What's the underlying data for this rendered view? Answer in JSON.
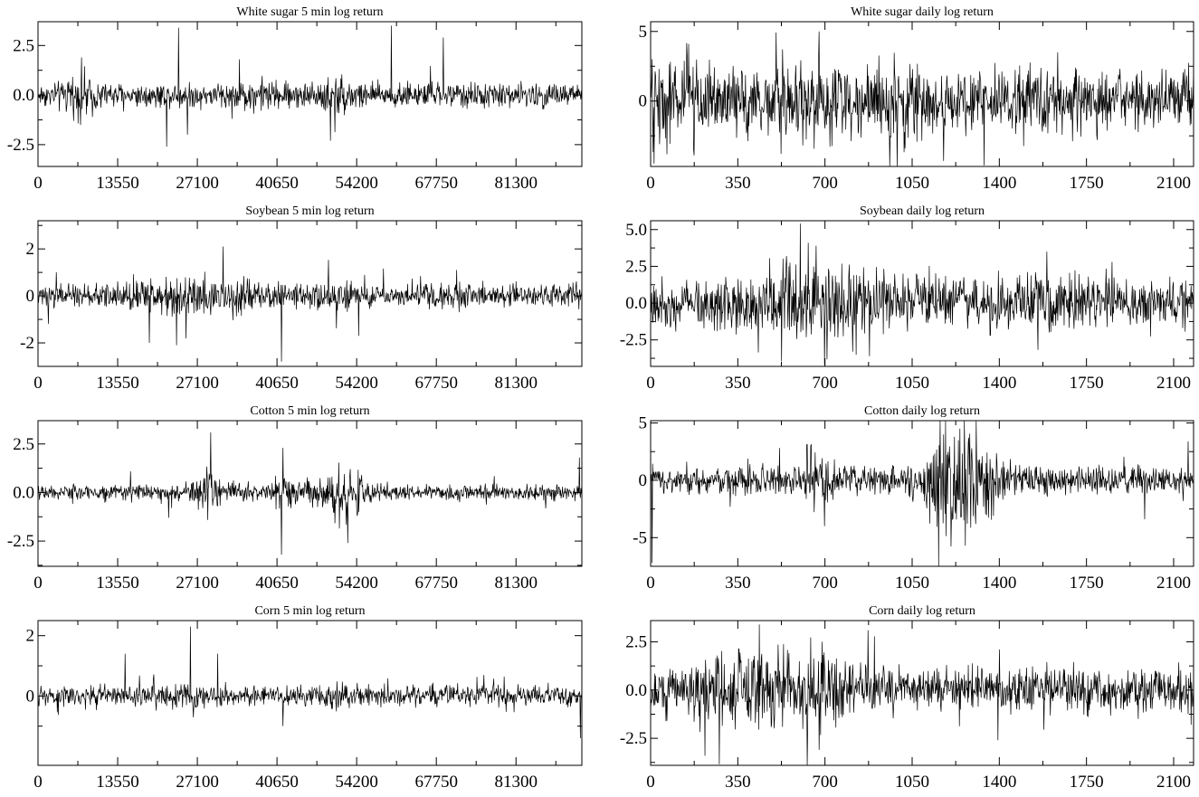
{
  "chart_data": [
    {
      "type": "line",
      "title": "White sugar 5 min log return",
      "x_ticks": [
        0,
        13550,
        27100,
        40650,
        54200,
        67750,
        81300
      ],
      "y_ticks": [
        {
          "v": 2.5,
          "label": "2.5"
        },
        {
          "v": 0,
          "label": "0.0"
        },
        {
          "v": -2.5,
          "label": "-2.5"
        }
      ],
      "xlim": [
        0,
        92500
      ],
      "ylim": [
        -3.6,
        3.7
      ],
      "grid": false,
      "noise_sd": 0.3,
      "clusters": [
        {
          "at": 0.08,
          "w": 0.03,
          "s": 1.8
        },
        {
          "at": 0.4,
          "w": 0.05,
          "s": 1.4
        },
        {
          "at": 0.55,
          "w": 0.04,
          "s": 1.7
        }
      ],
      "spikes": [
        {
          "at": 0.258,
          "v": 3.4
        },
        {
          "at": 0.65,
          "v": 3.5
        },
        {
          "at": 0.745,
          "v": 2.9
        },
        {
          "at": 0.237,
          "v": -2.6
        },
        {
          "at": 0.538,
          "v": -2.3
        },
        {
          "at": 0.275,
          "v": -2.0
        },
        {
          "at": 0.08,
          "v": 1.9
        }
      ]
    },
    {
      "type": "line",
      "title": "White sugar daily log return",
      "x_ticks": [
        0,
        350,
        700,
        1050,
        1400,
        1750,
        2100
      ],
      "y_ticks": [
        {
          "v": 5,
          "label": "5"
        },
        {
          "v": 0,
          "label": "0"
        }
      ],
      "xlim": [
        0,
        2180
      ],
      "ylim": [
        -4.7,
        5.7
      ],
      "grid": false,
      "noise_sd": 1.1,
      "clusters": [
        {
          "at": 0.05,
          "w": 0.06,
          "s": 1.5
        },
        {
          "at": 0.27,
          "w": 0.05,
          "s": 1.4
        },
        {
          "at": 0.45,
          "w": 0.05,
          "s": 1.3
        }
      ],
      "spikes": [
        {
          "at": 0.31,
          "v": 5.0
        },
        {
          "at": 0.006,
          "v": -4.5
        },
        {
          "at": 0.54,
          "v": -4.3
        },
        {
          "at": 0.24,
          "v": -3.8
        },
        {
          "at": 0.75,
          "v": 3.5
        },
        {
          "at": 0.07,
          "v": 4.1
        },
        {
          "at": 0.08,
          "v": -3.9
        }
      ]
    },
    {
      "type": "line",
      "title": "Soybean 5 min log return",
      "x_ticks": [
        0,
        13550,
        27100,
        40650,
        54200,
        67750,
        81300
      ],
      "y_ticks": [
        {
          "v": 2,
          "label": "2"
        },
        {
          "v": 0,
          "label": "0"
        },
        {
          "v": -2,
          "label": "-2"
        }
      ],
      "xlim": [
        0,
        92500
      ],
      "ylim": [
        -3.0,
        3.2
      ],
      "grid": false,
      "noise_sd": 0.22,
      "clusters": [
        {
          "at": 0.3,
          "w": 0.12,
          "s": 2.0
        },
        {
          "at": 0.55,
          "w": 0.05,
          "s": 1.3
        },
        {
          "at": 0.75,
          "w": 0.05,
          "s": 1.3
        }
      ],
      "spikes": [
        {
          "at": 0.34,
          "v": 2.1
        },
        {
          "at": 0.448,
          "v": -2.8
        },
        {
          "at": 0.205,
          "v": -2.0
        },
        {
          "at": 0.255,
          "v": -2.1
        },
        {
          "at": 0.59,
          "v": -1.7
        },
        {
          "at": 0.77,
          "v": 1.1
        }
      ]
    },
    {
      "type": "line",
      "title": "Soybean daily log return",
      "x_ticks": [
        0,
        350,
        700,
        1050,
        1400,
        1750,
        2100
      ],
      "y_ticks": [
        {
          "v": 5,
          "label": "5.0"
        },
        {
          "v": 2.5,
          "label": "2.5"
        },
        {
          "v": 0,
          "label": "0.0"
        },
        {
          "v": -2.5,
          "label": "-2.5"
        }
      ],
      "xlim": [
        0,
        2180
      ],
      "ylim": [
        -4.3,
        5.6
      ],
      "grid": false,
      "noise_sd": 0.8,
      "clusters": [
        {
          "at": 0.3,
          "w": 0.12,
          "s": 1.9
        },
        {
          "at": 0.55,
          "w": 0.06,
          "s": 1.2
        },
        {
          "at": 0.72,
          "w": 0.05,
          "s": 1.2
        }
      ],
      "spikes": [
        {
          "at": 0.32,
          "v": -4.2
        },
        {
          "at": 0.29,
          "v": 4.1
        },
        {
          "at": 0.305,
          "v": 3.9
        },
        {
          "at": 0.73,
          "v": 3.5
        },
        {
          "at": 0.85,
          "v": 2.8
        },
        {
          "at": 0.25,
          "v": 3.2
        }
      ]
    },
    {
      "type": "line",
      "title": "Cotton 5 min log return",
      "x_ticks": [
        0,
        13550,
        27100,
        40650,
        54200,
        67750,
        81300
      ],
      "y_ticks": [
        {
          "v": 2.5,
          "label": "2.5"
        },
        {
          "v": 0,
          "label": "0.0"
        },
        {
          "v": -2.5,
          "label": "-2.5"
        }
      ],
      "xlim": [
        0,
        92500
      ],
      "ylim": [
        -3.8,
        3.7
      ],
      "grid": false,
      "noise_sd": 0.2,
      "clusters": [
        {
          "at": 0.31,
          "w": 0.02,
          "s": 3.0
        },
        {
          "at": 0.45,
          "w": 0.03,
          "s": 2.0
        },
        {
          "at": 0.56,
          "w": 0.05,
          "s": 3.5
        }
      ],
      "spikes": [
        {
          "at": 0.318,
          "v": 3.1
        },
        {
          "at": 0.448,
          "v": -3.2
        },
        {
          "at": 0.45,
          "v": 2.3
        },
        {
          "at": 0.57,
          "v": -2.6
        },
        {
          "at": 0.24,
          "v": 2.0
        },
        {
          "at": 0.24,
          "v": -1.3
        },
        {
          "at": 0.995,
          "v": 1.8
        }
      ]
    },
    {
      "type": "line",
      "title": "Cotton daily log return",
      "x_ticks": [
        0,
        350,
        700,
        1050,
        1400,
        1750,
        2100
      ],
      "y_ticks": [
        {
          "v": 5,
          "label": "5"
        },
        {
          "v": 0,
          "label": "0"
        },
        {
          "v": -5,
          "label": "-5"
        }
      ],
      "xlim": [
        0,
        2180
      ],
      "ylim": [
        -7.5,
        5.2
      ],
      "grid": false,
      "noise_sd": 0.6,
      "clusters": [
        {
          "at": 0.3,
          "w": 0.03,
          "s": 2.5
        },
        {
          "at": 0.57,
          "w": 0.06,
          "s": 4.5
        }
      ],
      "spikes": [
        {
          "at": 0.57,
          "v": 4.5
        },
        {
          "at": 0.58,
          "v": -5.7
        },
        {
          "at": 0.32,
          "v": -4.0
        },
        {
          "at": 0.91,
          "v": -3.4
        },
        {
          "at": 0.99,
          "v": 3.4
        },
        {
          "at": 0.003,
          "v": -7.2
        }
      ]
    },
    {
      "type": "line",
      "title": "Corn 5 min log return",
      "x_ticks": [
        0,
        13550,
        27100,
        40650,
        54200,
        67750,
        81300
      ],
      "y_ticks": [
        {
          "v": 2,
          "label": "2"
        },
        {
          "v": 0,
          "label": "0"
        }
      ],
      "xlim": [
        0,
        92500
      ],
      "ylim": [
        -2.3,
        2.5
      ],
      "grid": false,
      "noise_sd": 0.16,
      "clusters": [
        {
          "at": 0.25,
          "w": 0.08,
          "s": 1.4
        },
        {
          "at": 0.55,
          "w": 0.03,
          "s": 1.4
        }
      ],
      "spikes": [
        {
          "at": 0.28,
          "v": 2.3
        },
        {
          "at": 0.997,
          "v": -1.4
        },
        {
          "at": 0.45,
          "v": -1.0
        },
        {
          "at": 0.16,
          "v": 1.4
        },
        {
          "at": 0.33,
          "v": 1.4
        }
      ]
    },
    {
      "type": "line",
      "title": "Corn daily log return",
      "x_ticks": [
        0,
        350,
        700,
        1050,
        1400,
        1750,
        2100
      ],
      "y_ticks": [
        {
          "v": 2.5,
          "label": "2.5"
        },
        {
          "v": 0,
          "label": "0.0"
        },
        {
          "v": -2.5,
          "label": "-2.5"
        }
      ],
      "xlim": [
        0,
        2180
      ],
      "ylim": [
        -3.9,
        3.6
      ],
      "grid": false,
      "noise_sd": 0.6,
      "clusters": [
        {
          "at": 0.2,
          "w": 0.1,
          "s": 1.8
        },
        {
          "at": 0.32,
          "w": 0.05,
          "s": 1.6
        }
      ],
      "spikes": [
        {
          "at": 0.2,
          "v": 3.4
        },
        {
          "at": 0.1,
          "v": -3.4
        },
        {
          "at": 0.31,
          "v": -3.1
        },
        {
          "at": 0.4,
          "v": 3.1
        },
        {
          "at": 0.64,
          "v": -2.6
        },
        {
          "at": 0.995,
          "v": -1.8
        }
      ]
    }
  ]
}
